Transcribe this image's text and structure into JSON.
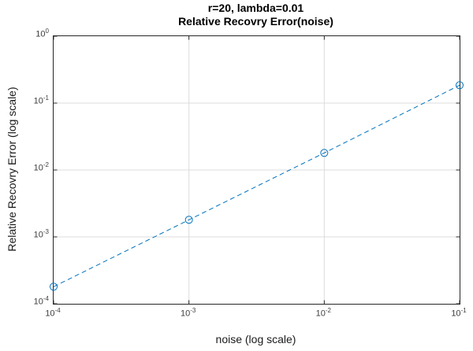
{
  "title": {
    "line1": "r=20, lambda=0.01",
    "line2": "Relative Recovry Error(noise)"
  },
  "axes": {
    "xlabel": "noise (log scale)",
    "ylabel": "Relative Recovry Error (log scale)"
  },
  "chart_data": {
    "type": "line",
    "title": "r=20, lambda=0.01 / Relative Recovry Error(noise)",
    "xlabel": "noise (log scale)",
    "ylabel": "Relative Recovry Error (log scale)",
    "xscale": "log",
    "yscale": "log",
    "xlim": [
      0.0001,
      0.1
    ],
    "ylim": [
      0.0001,
      1
    ],
    "x_tick_exponents": [
      -4,
      -3,
      -2,
      -1
    ],
    "y_tick_exponents": [
      0,
      -1,
      -2,
      -3,
      -4
    ],
    "grid": true,
    "legend": "none",
    "line_style": "dashed",
    "marker": "circle",
    "x": [
      0.0001,
      0.001,
      0.01,
      0.1
    ],
    "series": [
      {
        "name": "relative recovery error",
        "values": [
          0.00018,
          0.0018,
          0.018,
          0.185
        ]
      }
    ],
    "colors": {
      "line": "#0072BD",
      "grid": "#dcdcdc",
      "axis": "#262626",
      "tick_label": "#3d3d3d",
      "title": "#000000",
      "background": "#ffffff"
    }
  }
}
